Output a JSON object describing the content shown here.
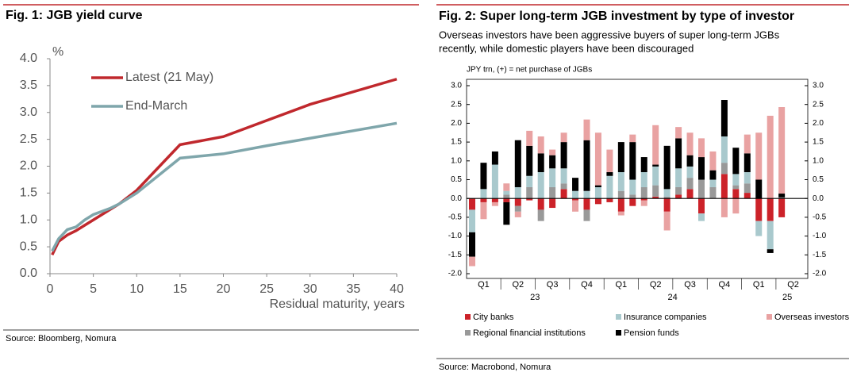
{
  "chart_data": [
    {
      "type": "line",
      "title": "Fig. 1: JGB yield curve",
      "y_unit": "%",
      "x_label": "Residual maturity, years",
      "source": "Source: Bloomberg, Nomura",
      "series": [
        {
          "name": "Latest (21 May)",
          "color": "#c0282d",
          "x": [
            0.25,
            1,
            2,
            3,
            4,
            5,
            7,
            8,
            10,
            15,
            20,
            25,
            30,
            40
          ],
          "values": [
            0.35,
            0.6,
            0.72,
            0.8,
            0.9,
            1.0,
            1.2,
            1.3,
            1.55,
            2.4,
            2.55,
            2.85,
            3.15,
            3.62
          ]
        },
        {
          "name": "End-March",
          "color": "#7fa6ab",
          "x": [
            0.25,
            1,
            2,
            3,
            4,
            5,
            7,
            8,
            10,
            15,
            20,
            25,
            30,
            40
          ],
          "values": [
            0.42,
            0.65,
            0.82,
            0.87,
            1.0,
            1.1,
            1.22,
            1.3,
            1.5,
            2.15,
            2.23,
            2.38,
            2.52,
            2.8
          ]
        }
      ],
      "xlim": [
        0,
        40
      ],
      "xticks": [
        0,
        5,
        10,
        15,
        20,
        25,
        30,
        35,
        40
      ],
      "ylim": [
        0,
        4
      ],
      "yticks": [
        {
          "value": 0,
          "label": "0.0"
        },
        {
          "value": 0.5,
          "label": "0.5"
        },
        {
          "value": 1,
          "label": "1.0"
        },
        {
          "value": 1.5,
          "label": "1.5"
        },
        {
          "value": 2,
          "label": "2.0"
        },
        {
          "value": 2.5,
          "label": "2.5"
        },
        {
          "value": 3,
          "label": "3.0"
        },
        {
          "value": 3.5,
          "label": "3.5"
        },
        {
          "value": 4,
          "label": "4.0"
        }
      ]
    },
    {
      "type": "bar",
      "stacked": true,
      "title": "Fig. 2: Super long-term JGB investment by type of investor",
      "subtitle": [
        "Overseas investors have been aggressive buyers of super long-term JGBs",
        "recently, while domestic players have been discouraged"
      ],
      "y_label": "JPY trn, (+) = net purchase of JGBs",
      "source": "Source: Macrobond, Nomura",
      "categories": [
        null,
        "Q1",
        null,
        null,
        "Q2",
        null,
        null,
        "Q3",
        null,
        null,
        "Q4",
        null,
        null,
        "Q1",
        null,
        null,
        "Q2",
        null,
        null,
        "Q3",
        null,
        null,
        "Q4",
        null,
        null,
        "Q1",
        null,
        null,
        "Q2"
      ],
      "year_labels": [
        null,
        null,
        null,
        null,
        null,
        "23",
        null,
        null,
        null,
        null,
        null,
        null,
        null,
        null,
        null,
        null,
        null,
        "24",
        null,
        null,
        null,
        null,
        null,
        null,
        null,
        null,
        null,
        "25",
        null
      ],
      "series": [
        {
          "name": "City banks",
          "color": "#cc2229",
          "values": [
            -0.3,
            -0.1,
            -0.1,
            -0.1,
            -0.2,
            -0.05,
            -0.3,
            -0.25,
            0.25,
            -0.05,
            -0.3,
            -0.15,
            -0.1,
            -0.35,
            -0.2,
            -0.05,
            0.05,
            -0.35,
            0.1,
            0.25,
            -0.4,
            0,
            0.65,
            0.25,
            0.15,
            -0.6,
            -0.6,
            -0.5,
            null
          ]
        },
        {
          "name": "Regional financial institutions",
          "color": "#999999",
          "values": [
            0,
            0,
            0,
            0.1,
            -0.15,
            0.3,
            -0.3,
            0.3,
            0.15,
            0,
            -0.3,
            0,
            0,
            0.2,
            0.1,
            0.3,
            0.3,
            0.05,
            0.2,
            0.3,
            0.5,
            0.3,
            0.3,
            0.1,
            0.25,
            0,
            0,
            0.03,
            null
          ]
        },
        {
          "name": "Insurance companies",
          "color": "#a9c9cd",
          "values": [
            -0.6,
            0.25,
            0.9,
            0.1,
            0.3,
            0.3,
            0.7,
            0.5,
            0.4,
            0.2,
            0.2,
            0.3,
            0.6,
            0.5,
            0.4,
            0.4,
            0.5,
            0.2,
            0.5,
            0.3,
            -0.2,
            0.2,
            0.7,
            0.3,
            0.3,
            -0.4,
            -0.75,
            0,
            null
          ]
        },
        {
          "name": "Pension funds",
          "color": "#000000",
          "values": [
            -0.65,
            0.7,
            0.35,
            -0.6,
            1.25,
            0.8,
            0.5,
            0.35,
            0.7,
            0.35,
            1.35,
            0.05,
            0.1,
            0.8,
            1.0,
            0.4,
            0.05,
            1.15,
            0.8,
            0.3,
            0.6,
            0.25,
            0.97,
            0.7,
            0.5,
            0.5,
            -0.1,
            0.1,
            null
          ]
        },
        {
          "name": "Overseas investors",
          "color": "#e9a2a2",
          "values": [
            -0.25,
            -0.45,
            -0.1,
            0.2,
            -0.15,
            0.4,
            0.45,
            0.15,
            0.25,
            -0.3,
            0.55,
            1.4,
            0.6,
            -0.1,
            0.2,
            -0.15,
            1.05,
            -0.5,
            0.3,
            0.6,
            0.5,
            0.5,
            -0.5,
            -0.4,
            0.5,
            1.25,
            2.2,
            2.3,
            null
          ]
        }
      ],
      "ylim": [
        -2,
        3
      ],
      "yticks": [
        {
          "value": 3,
          "label": "3.0"
        },
        {
          "value": 2.5,
          "label": "2.5"
        },
        {
          "value": 2,
          "label": "2.0"
        },
        {
          "value": 1.5,
          "label": "1.5"
        },
        {
          "value": 1,
          "label": "1.0"
        },
        {
          "value": 0.5,
          "label": "0.5"
        },
        {
          "value": 0,
          "label": "0.0"
        },
        {
          "value": -0.5,
          "label": "-0.5"
        },
        {
          "value": -1,
          "label": "-1.0"
        },
        {
          "value": -1.5,
          "label": "-1.5"
        },
        {
          "value": -2,
          "label": "-2.0"
        }
      ]
    }
  ]
}
